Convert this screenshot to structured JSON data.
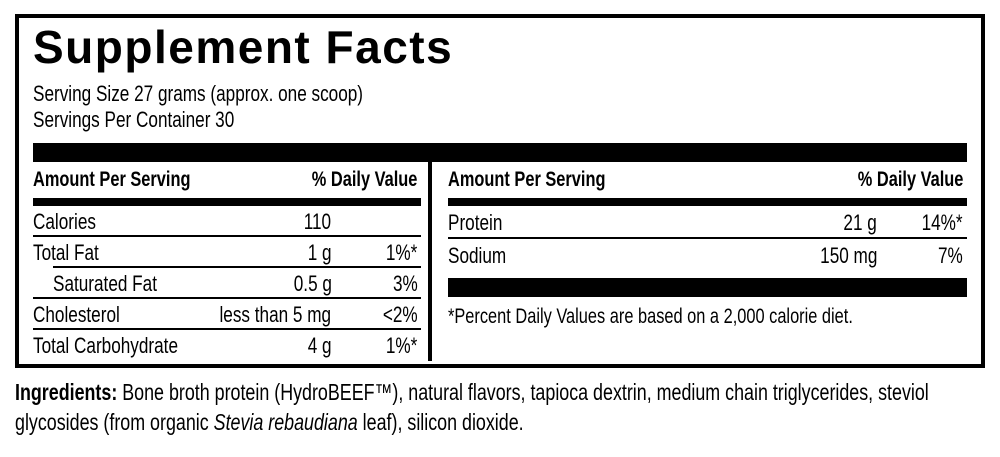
{
  "nutrition_label": {
    "title": "Supplement Facts",
    "serving_size": "Serving Size 27 grams (approx. one scoop)",
    "servings_per_container": "Servings Per Container 30",
    "columns": [
      {
        "amount_header": "Amount Per Serving",
        "dv_header": "% Daily Value",
        "rows": [
          {
            "name": "Calories",
            "amount": "110",
            "dv": ""
          },
          {
            "name": "Total Fat",
            "amount": "1 g",
            "dv": "1%*"
          },
          {
            "name": "Saturated Fat",
            "amount": "0.5 g",
            "dv": "3%"
          },
          {
            "name": "Cholesterol",
            "amount": "less than 5 mg",
            "dv": "<2%"
          },
          {
            "name": "Total Carbohydrate",
            "amount": "4 g",
            "dv": "1%*"
          }
        ]
      },
      {
        "amount_header": "Amount Per Serving",
        "dv_header": "% Daily Value",
        "rows": [
          {
            "name": "Protein",
            "amount": "21 g",
            "dv": "14%*"
          },
          {
            "name": "Sodium",
            "amount": "150 mg",
            "dv": "7%"
          }
        ],
        "footnote": "*Percent Daily Values are based on a 2,000 calorie diet."
      }
    ]
  },
  "ingredients": {
    "heading": "Ingredients:",
    "text_before_italic": " Bone broth protein (HydroBEEF™), natural flavors, tapioca dextrin, medium chain triglycerides, steviol glycosides (from organic ",
    "italic_text": "Stevia rebaudiana",
    "text_after_italic": " leaf), silicon dioxide."
  },
  "colors": {
    "ink": "#000000",
    "paper": "#ffffff"
  }
}
